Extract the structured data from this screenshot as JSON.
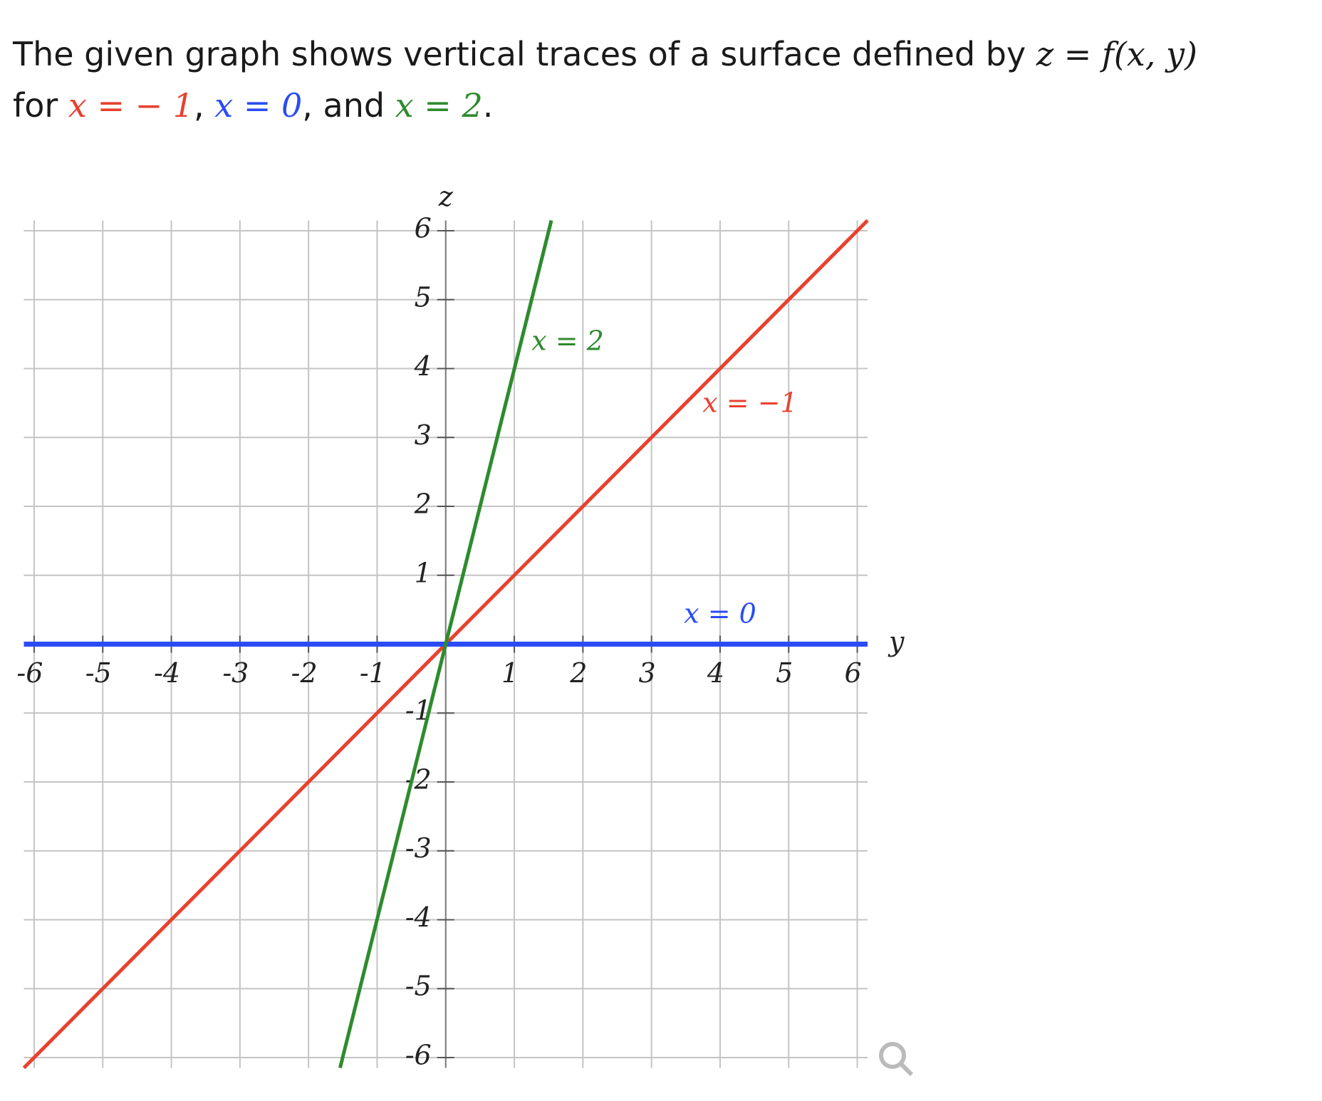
{
  "question": {
    "lines": [
      [
        {
          "text": "The given graph shows vertical traces of a surface defined by ",
          "math": false
        },
        {
          "text": "z = f(x, y)",
          "math": true
        }
      ],
      [
        {
          "text": "for ",
          "math": false
        },
        {
          "text": "x = − 1",
          "math": true,
          "color": "#e8412f"
        },
        {
          "text": ", ",
          "math": false
        },
        {
          "text": "x = 0",
          "math": true,
          "color": "#2a4cf5"
        },
        {
          "text": ", and ",
          "math": false
        },
        {
          "text": "x = 2",
          "math": true,
          "color": "#2e8b2e"
        },
        {
          "text": ".",
          "math": false
        }
      ]
    ]
  },
  "chart_data": {
    "type": "line",
    "x_label": "y",
    "y_label": "z",
    "xlim": [
      -6.15,
      6.15
    ],
    "ylim": [
      -6.15,
      6.15
    ],
    "xticks": [
      -6,
      -5,
      -4,
      -3,
      -2,
      -1,
      1,
      2,
      3,
      4,
      5,
      6
    ],
    "yticks": [
      -6,
      -5,
      -4,
      -3,
      -2,
      -1,
      1,
      2,
      3,
      4,
      5,
      6
    ],
    "grid": true,
    "series": [
      {
        "name": "x = −1",
        "color": "#e8412f",
        "x": [
          -6.15,
          6.15
        ],
        "values": [
          -6.15,
          6.15
        ]
      },
      {
        "name": "x = 0",
        "color": "#2a4cf5",
        "x": [
          -6.15,
          6.15
        ],
        "values": [
          0,
          0
        ]
      },
      {
        "name": "x = 2",
        "color": "#2e8b2e",
        "x": [
          -1.54,
          1.54
        ],
        "values": [
          -6.15,
          6.15
        ]
      }
    ]
  }
}
